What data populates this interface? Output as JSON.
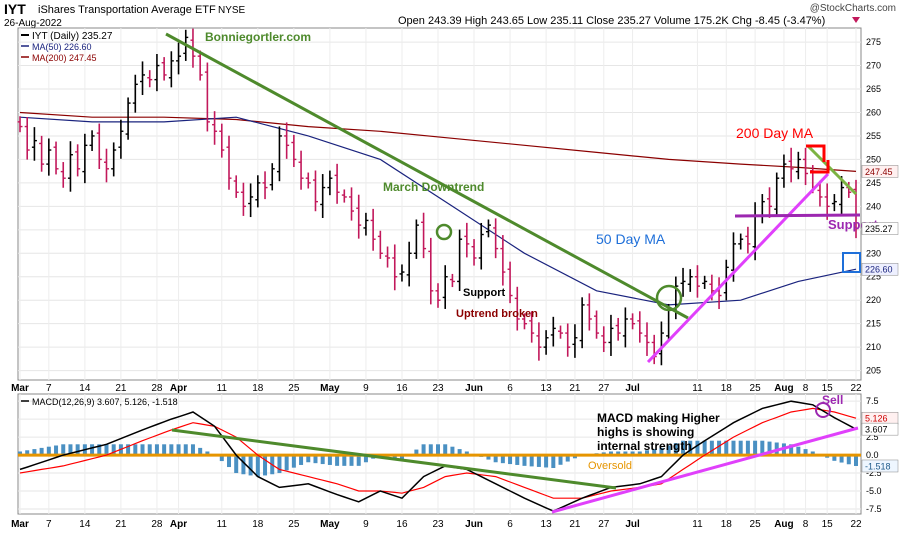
{
  "header": {
    "symbol": "IYT",
    "name": "iShares Transportation Average ETF",
    "exchange": "NYSE",
    "date": "26-Aug-2022",
    "quote": "Open 243.39  High 243.65  Low 235.11  Close 235.27  Volume 175.2K  Chg -8.45 (-3.47%)",
    "watermark": "@StockCharts.com"
  },
  "legend": {
    "price_label": "IYT (Daily) 235.27",
    "ma50_label": "MA(50) 226.60",
    "ma200_label": "MA(200) 247.45",
    "macd_label": "MACD(12,26,9) 3.607, 5.126, -1.518"
  },
  "colors": {
    "up_bar": "#000000",
    "down_bar": "#c2185b",
    "ma50": "#1a237e",
    "ma200": "#8b0000",
    "trend_green": "#4e8a2c",
    "magenta": "#e040fb",
    "red": "#ff0000",
    "blue": "#1e6fd9",
    "purple": "#9c27b0",
    "orange": "#e69500",
    "hist": "#4a90c2",
    "signal": "#ff0000",
    "macd": "#000000"
  },
  "annotations": {
    "site": "Bonniegortler.com",
    "march_downtrend": "March Downtrend",
    "ma50": "50 Day MA",
    "ma200": "200 Day MA",
    "support_left": "Support",
    "uptrend_broken": "Uptrend broken",
    "support_right": "Support",
    "sell": "Sell",
    "macd_note": [
      "MACD making Higher",
      "highs is showing",
      "internal strength"
    ],
    "oversold": "Oversold"
  },
  "chart_data": [
    {
      "type": "ohlc",
      "title": "IYT (Daily) 235.27",
      "x_ticks": [
        "Mar",
        "7",
        "14",
        "21",
        "28",
        "Apr",
        "11",
        "18",
        "25",
        "May",
        "9",
        "16",
        "23",
        "Jun",
        "6",
        "13",
        "21",
        "27",
        "Jul",
        "11",
        "18",
        "25",
        "Aug",
        "8",
        "15",
        "22"
      ],
      "y_ticks": [
        205,
        210,
        215,
        220,
        225,
        230,
        235,
        240,
        245,
        250,
        255,
        260,
        265,
        270,
        275
      ],
      "ylim": [
        203,
        278
      ],
      "right_labels": [
        "247.45",
        "235.27",
        "226.60"
      ],
      "close": [
        257,
        252,
        254,
        249,
        252,
        248,
        246,
        251,
        248,
        253,
        255,
        250,
        248,
        252,
        256,
        262,
        266,
        268,
        267,
        270,
        268,
        271,
        272,
        276,
        272,
        268,
        258,
        256,
        252,
        246,
        243,
        240,
        242,
        245,
        244,
        248,
        255,
        253,
        250,
        246,
        245,
        241,
        244,
        246,
        243,
        242,
        239,
        236,
        237,
        233,
        230,
        229,
        225,
        226,
        230,
        236,
        231,
        222,
        220,
        225,
        224,
        233,
        232,
        229,
        234,
        236,
        231,
        226,
        221,
        216,
        215,
        213,
        210,
        212,
        214,
        213,
        210,
        212,
        219,
        216,
        213,
        211,
        214,
        213,
        216,
        215,
        213,
        211,
        208,
        213,
        218,
        223,
        224,
        225,
        223,
        224,
        222,
        221,
        227,
        232,
        233,
        232,
        238,
        241,
        240,
        246,
        249,
        248,
        250,
        247,
        244,
        242,
        240,
        241,
        244,
        243,
        235.27
      ],
      "series": [
        {
          "name": "MA(50) 226.60",
          "x": [
            0,
            10,
            20,
            30,
            40,
            50,
            60,
            70,
            80,
            90,
            100,
            108,
            116
          ],
          "values": [
            259,
            258,
            258,
            259,
            255,
            250,
            240,
            230,
            222,
            219,
            220,
            224,
            226.6
          ]
        },
        {
          "name": "MA(200) 247.45",
          "x": [
            0,
            10,
            20,
            30,
            40,
            50,
            60,
            70,
            80,
            90,
            100,
            108,
            116
          ],
          "values": [
            260,
            259,
            259,
            258.5,
            257,
            256,
            254.5,
            253,
            251.5,
            250,
            249,
            248.3,
            247.45
          ]
        }
      ]
    },
    {
      "type": "macd",
      "title": "MACD(12,26,9) 3.607, 5.126, -1.518",
      "y_ticks": [
        -7.5,
        -5.0,
        -2.5,
        0.0,
        2.5,
        5.0,
        7.5
      ],
      "ylim": [
        -8.2,
        8.5
      ],
      "right_labels": [
        "5.126",
        "3.607",
        "-1.518"
      ],
      "series": [
        {
          "name": "MACD",
          "x": [
            0,
            6,
            12,
            17,
            21,
            24,
            27,
            30,
            33,
            36,
            40,
            44,
            47,
            50,
            53,
            56,
            59,
            62,
            66,
            70,
            74,
            78,
            82,
            86,
            89,
            92,
            95,
            99,
            103,
            107,
            110,
            113,
            116
          ],
          "values": [
            -2,
            0,
            1.5,
            3.5,
            5,
            6,
            4,
            0,
            -3,
            -4.5,
            -4,
            -5.5,
            -6.5,
            -5,
            -6,
            -3,
            -1.5,
            -2,
            -4,
            -6,
            -7.8,
            -6,
            -4.5,
            -4,
            -3,
            0,
            2,
            4.5,
            6.5,
            7.5,
            7,
            5.2,
            3.607
          ]
        },
        {
          "name": "Signal",
          "x": [
            0,
            6,
            12,
            17,
            21,
            24,
            27,
            30,
            33,
            36,
            40,
            44,
            47,
            50,
            53,
            56,
            59,
            62,
            66,
            70,
            74,
            78,
            82,
            86,
            89,
            92,
            95,
            99,
            103,
            107,
            110,
            113,
            116
          ],
          "values": [
            -2.5,
            -1.5,
            0,
            2,
            3.5,
            4.5,
            4,
            2.5,
            0,
            -2,
            -3,
            -4,
            -5,
            -5,
            -5.3,
            -4.5,
            -3,
            -2.5,
            -3,
            -4.5,
            -6,
            -6,
            -5,
            -4.5,
            -4,
            -2,
            0,
            2.5,
            4.5,
            6,
            6.5,
            6,
            5.126
          ]
        }
      ]
    }
  ]
}
